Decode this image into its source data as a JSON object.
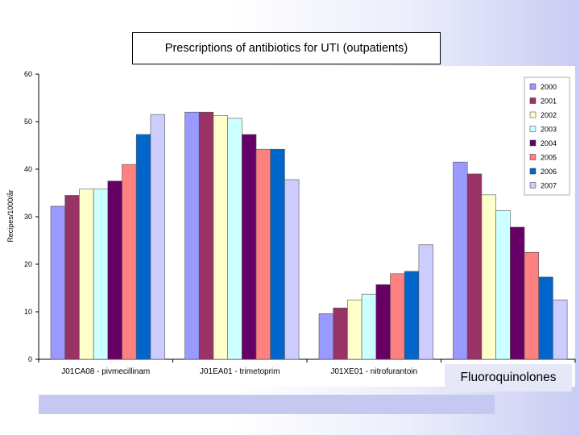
{
  "chart_data": {
    "type": "bar",
    "title": "Prescriptions of antibiotics for UTI (outpatients)",
    "ylabel": "Recipes/1000/år",
    "xlabel": "",
    "ylim": [
      0,
      60
    ],
    "yticks": [
      0,
      10,
      20,
      30,
      40,
      50,
      60
    ],
    "categories": [
      "J01CA08 - pivmecillinam",
      "J01EA01 - trimetoprim",
      "J01XE01 - nitrofurantoin",
      ""
    ],
    "series": [
      {
        "name": "2000",
        "color": "#9999ff",
        "values": [
          32.2,
          52.0,
          9.6,
          41.5
        ]
      },
      {
        "name": "2001",
        "color": "#993366",
        "values": [
          34.5,
          52.0,
          10.8,
          39.0
        ]
      },
      {
        "name": "2002",
        "color": "#ffffcc",
        "values": [
          35.8,
          51.3,
          12.5,
          34.6
        ]
      },
      {
        "name": "2003",
        "color": "#ccffff",
        "values": [
          35.8,
          50.7,
          13.7,
          31.3
        ]
      },
      {
        "name": "2004",
        "color": "#660066",
        "values": [
          37.5,
          47.3,
          15.7,
          27.8
        ]
      },
      {
        "name": "2005",
        "color": "#ff8080",
        "values": [
          41.0,
          44.2,
          18.0,
          22.5
        ]
      },
      {
        "name": "2006",
        "color": "#0066cc",
        "values": [
          47.3,
          44.2,
          18.5,
          17.3
        ]
      },
      {
        "name": "2007",
        "color": "#ccccff",
        "values": [
          51.5,
          37.8,
          24.1,
          12.5
        ]
      }
    ],
    "annotation": "Fluoroquinolones",
    "grid": false,
    "legend": "right"
  }
}
